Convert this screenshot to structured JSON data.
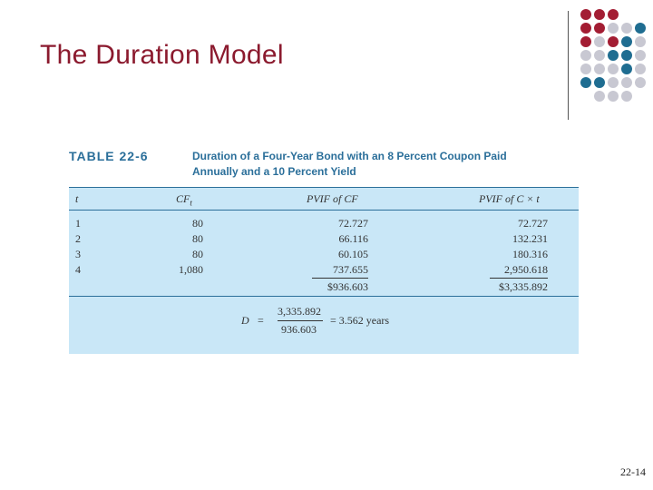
{
  "slide": {
    "title": "The Duration Model",
    "page_number": "22-14"
  },
  "colors": {
    "title": "#8b1a2e",
    "accent_blue": "#2b6f9a",
    "table_bg": "#c9e7f7",
    "dot_red": "#a31d33",
    "dot_gray": "#c8c8d2",
    "dot_blue": "#1f6d91"
  },
  "table": {
    "number": "TABLE 22-6",
    "caption_line1": "Duration of a Four-Year Bond with an 8 Percent Coupon Paid",
    "caption_line2": "Annually and a 10 Percent Yield",
    "headers": {
      "t": "t",
      "cf": "CF",
      "cf_sub": "t",
      "pvif_cf": "PVIF of CF",
      "pvif_ct": "PVIF of C × t"
    },
    "rows": [
      {
        "t": "1",
        "cf": "80",
        "pvif_cf": "72.727",
        "pvif_ct": "72.727"
      },
      {
        "t": "2",
        "cf": "80",
        "pvif_cf": "66.116",
        "pvif_ct": "132.231"
      },
      {
        "t": "3",
        "cf": "80",
        "pvif_cf": "60.105",
        "pvif_ct": "180.316"
      },
      {
        "t": "4",
        "cf": "1,080",
        "pvif_cf": "737.655",
        "pvif_ct": "2,950.618"
      }
    ],
    "totals": {
      "pvif_cf": "$936.603",
      "pvif_ct": "$3,335.892"
    }
  },
  "formula": {
    "lhs": "D",
    "equals": "=",
    "numerator": "3,335.892",
    "denominator": "936.603",
    "result": "= 3.562 years"
  }
}
